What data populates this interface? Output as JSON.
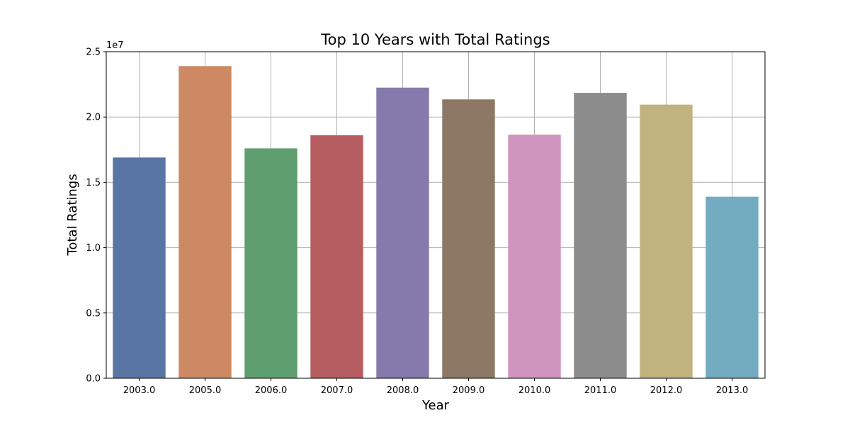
{
  "chart_data": {
    "type": "bar",
    "title": "Top 10 Years with Total Ratings",
    "xlabel": "Year",
    "ylabel": "Total Ratings",
    "y_offset_label": "1e7",
    "categories": [
      "2003.0",
      "2005.0",
      "2006.0",
      "2007.0",
      "2008.0",
      "2009.0",
      "2010.0",
      "2011.0",
      "2012.0",
      "2013.0"
    ],
    "values": [
      16900000,
      23900000,
      17600000,
      18600000,
      22250000,
      21350000,
      18650000,
      21850000,
      20950000,
      13900000
    ],
    "colors": [
      "#5875a4",
      "#cc8963",
      "#5f9e6e",
      "#b55d60",
      "#857aab",
      "#8d7866",
      "#d095bf",
      "#8c8c8c",
      "#c1b37f",
      "#73acc1"
    ],
    "ylim": [
      0,
      25000000
    ],
    "yticks": [
      0,
      5000000,
      10000000,
      15000000,
      20000000,
      25000000
    ],
    "ytick_labels": [
      "0.0",
      "0.5",
      "1.0",
      "1.5",
      "2.0",
      "2.5"
    ],
    "grid": true,
    "legend": "none"
  }
}
